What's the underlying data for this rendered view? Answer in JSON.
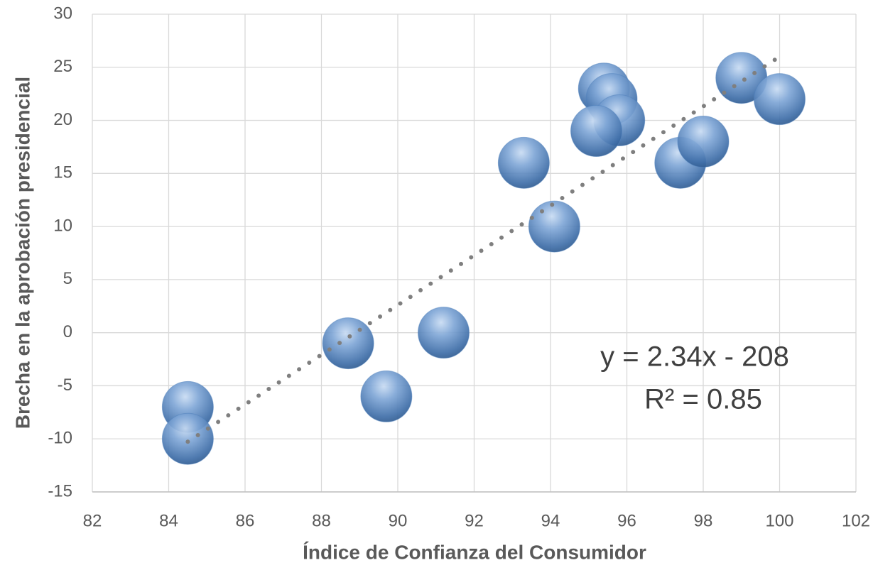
{
  "chart_data": {
    "type": "scatter",
    "x_label": "Índice de Confianza del Consumidor",
    "y_label": "Brecha en la aprobación presidencial",
    "x": [
      84.5,
      84.5,
      88.7,
      89.7,
      91.2,
      93.3,
      94.1,
      95.4,
      95.6,
      95.8,
      95.2,
      97.4,
      98.0,
      99.0,
      100
    ],
    "values": [
      -7,
      -10,
      -1,
      -6,
      0,
      16,
      10,
      23,
      22,
      20,
      19,
      16,
      18,
      24,
      22
    ],
    "color": "#4f81bd",
    "xlim": [
      82,
      102
    ],
    "xticks": [
      82,
      84,
      86,
      88,
      90,
      92,
      94,
      96,
      98,
      100,
      102
    ],
    "ylim": [
      -15,
      30
    ],
    "yticks": [
      -15,
      -10,
      -5,
      0,
      5,
      10,
      15,
      20,
      25,
      30
    ],
    "grid": true,
    "trendline": {
      "slope": 2.34,
      "intercept": -208,
      "color": "#7f7f7f",
      "equation": "y = 2.34x - 208",
      "r_squared": "R² = 0.85"
    }
  }
}
